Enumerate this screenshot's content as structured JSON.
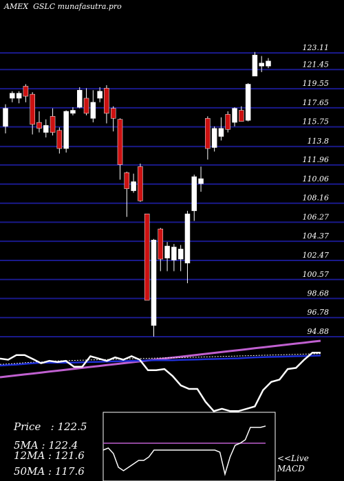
{
  "header": {
    "exchange": "AMEX",
    "symbol": "GSLC",
    "site": "munafasutra.pro"
  },
  "colors": {
    "background": "#000000",
    "grid": "#1a1a8c",
    "up_candle": "#ffffff",
    "down_candle": "#cc1111",
    "wick": "#ffffff",
    "price_line": "#ffffff",
    "ma_fast": "#1f2fd8",
    "ma_slow": "#c060d0",
    "macd_box": "#ffffff"
  },
  "chart_data": {
    "type": "candlestick",
    "price_axis": {
      "ticks": [
        123.11,
        121.45,
        119.55,
        117.65,
        115.75,
        113.8,
        111.96,
        110.06,
        108.16,
        106.27,
        104.37,
        102.47,
        100.57,
        98.68,
        96.78,
        94.88
      ],
      "labels": [
        "123.11",
        "121.45",
        "119.55",
        "117.65",
        "115.75",
        "113.8",
        "111.96",
        "110.06",
        "108.16",
        "106.27",
        "104.37",
        "102.47",
        "100.57",
        "98.68",
        "96.78",
        "94.88"
      ]
    },
    "candles": [
      {
        "o": 115.8,
        "c": 117.6,
        "h": 118.0,
        "l": 115.1
      },
      {
        "o": 118.6,
        "c": 119.1,
        "h": 119.3,
        "l": 118.2
      },
      {
        "o": 118.6,
        "c": 119.1,
        "h": 119.3,
        "l": 118.1
      },
      {
        "o": 119.8,
        "c": 118.8,
        "h": 120.0,
        "l": 118.2
      },
      {
        "o": 119.0,
        "c": 116.0,
        "h": 119.2,
        "l": 115.0
      },
      {
        "o": 116.2,
        "c": 115.6,
        "h": 117.3,
        "l": 115.2
      },
      {
        "o": 115.2,
        "c": 115.9,
        "h": 116.5,
        "l": 114.7
      },
      {
        "o": 116.8,
        "c": 115.2,
        "h": 117.6,
        "l": 114.9
      },
      {
        "o": 115.4,
        "c": 113.6,
        "h": 115.7,
        "l": 113.1
      },
      {
        "o": 113.6,
        "c": 117.3,
        "h": 117.4,
        "l": 113.2
      },
      {
        "o": 117.1,
        "c": 117.4,
        "h": 117.7,
        "l": 116.9
      },
      {
        "o": 117.7,
        "c": 119.4,
        "h": 119.7,
        "l": 117.6
      },
      {
        "o": 118.6,
        "c": 117.1,
        "h": 119.6,
        "l": 116.9
      },
      {
        "o": 116.6,
        "c": 118.2,
        "h": 119.4,
        "l": 116.2
      },
      {
        "o": 118.6,
        "c": 119.3,
        "h": 119.7,
        "l": 118.2
      },
      {
        "o": 119.6,
        "c": 117.1,
        "h": 119.9,
        "l": 116.1
      },
      {
        "o": 117.6,
        "c": 116.6,
        "h": 117.8,
        "l": 115.3
      },
      {
        "o": 116.5,
        "c": 112.0,
        "h": 116.6,
        "l": 110.5
      },
      {
        "o": 111.2,
        "c": 109.6,
        "h": 111.3,
        "l": 106.8
      },
      {
        "o": 109.4,
        "c": 110.3,
        "h": 111.1,
        "l": 109.2
      },
      {
        "o": 111.8,
        "c": 108.4,
        "h": 112.1,
        "l": 108.3
      },
      {
        "o": 107.1,
        "c": 98.5,
        "h": 107.1,
        "l": 98.5
      },
      {
        "o": 96.0,
        "c": 104.5,
        "h": 104.6,
        "l": 94.9
      },
      {
        "o": 105.6,
        "c": 102.6,
        "h": 105.7,
        "l": 101.4
      },
      {
        "o": 102.7,
        "c": 103.9,
        "h": 104.3,
        "l": 101.4
      },
      {
        "o": 102.5,
        "c": 103.8,
        "h": 104.1,
        "l": 101.4
      },
      {
        "o": 102.6,
        "c": 103.6,
        "h": 104.0,
        "l": 101.4
      },
      {
        "o": 102.2,
        "c": 107.1,
        "h": 107.4,
        "l": 100.2
      },
      {
        "o": 107.4,
        "c": 110.8,
        "h": 111.0,
        "l": 106.4
      },
      {
        "o": 110.1,
        "c": 110.6,
        "h": 111.8,
        "l": 109.3
      },
      {
        "o": 116.6,
        "c": 113.6,
        "h": 116.8,
        "l": 112.5
      },
      {
        "o": 113.7,
        "c": 115.6,
        "h": 115.8,
        "l": 113.3
      },
      {
        "o": 114.8,
        "c": 115.6,
        "h": 116.7,
        "l": 114.4
      },
      {
        "o": 117.0,
        "c": 115.5,
        "h": 117.3,
        "l": 115.2
      },
      {
        "o": 116.2,
        "c": 117.6,
        "h": 117.7,
        "l": 115.8
      },
      {
        "o": 117.4,
        "c": 116.3,
        "h": 117.8,
        "l": 116.3
      },
      {
        "o": 116.4,
        "c": 120.0,
        "h": 120.1,
        "l": 116.3
      },
      {
        "o": 120.8,
        "c": 122.9,
        "h": 123.2,
        "l": 120.8
      },
      {
        "o": 121.8,
        "c": 122.1,
        "h": 122.8,
        "l": 121.2
      },
      {
        "o": 121.8,
        "c": 122.3,
        "h": 122.6,
        "l": 121.6
      }
    ],
    "indicator_panel": {
      "price_line": [
        0.8,
        0.75,
        0.95,
        0.95,
        0.78,
        0.6,
        0.7,
        0.65,
        0.7,
        0.45,
        0.45,
        0.9,
        0.8,
        0.7,
        0.85,
        0.75,
        0.9,
        0.75,
        0.3,
        0.3,
        0.35,
        0.05,
        -0.35,
        -0.5,
        -0.5,
        -1.05,
        -1.45,
        -1.35,
        -1.45,
        -1.45,
        -1.35,
        -1.25,
        -0.55,
        -0.2,
        -0.1,
        0.35,
        0.4,
        0.75,
        1.05,
        1.05
      ],
      "ma_fast_line": [
        0.5,
        0.52,
        0.54,
        0.57,
        0.6,
        0.62,
        0.62,
        0.62,
        0.62,
        0.63,
        0.64,
        0.65,
        0.66,
        0.67,
        0.68,
        0.69,
        0.7,
        0.71,
        0.72,
        0.73,
        0.73,
        0.73,
        0.74,
        0.75,
        0.76,
        0.77,
        0.78,
        0.79,
        0.8,
        0.81,
        0.83,
        0.85,
        0.86,
        0.87,
        0.88,
        0.89,
        0.9,
        0.91,
        0.92,
        0.93
      ],
      "ma_slow_line": [
        0.0,
        0.04,
        0.08,
        0.12,
        0.16,
        0.2,
        0.24,
        0.28,
        0.32,
        0.36,
        0.4,
        0.44,
        0.48,
        0.52,
        0.56,
        0.6,
        0.64,
        0.68,
        0.72,
        0.76,
        0.8,
        0.84,
        0.88,
        0.92,
        0.96,
        1.0,
        1.04,
        1.08,
        1.12,
        1.16,
        1.2,
        1.24,
        1.28,
        1.32,
        1.36,
        1.4,
        1.44,
        1.48,
        1.52,
        1.56
      ],
      "dotted_line": [
        0.55,
        0.57,
        0.59,
        0.62,
        0.64,
        0.66,
        0.68,
        0.7,
        0.71,
        0.72,
        0.73,
        0.74,
        0.75,
        0.76,
        0.77,
        0.78,
        0.79,
        0.8,
        0.81,
        0.82,
        0.83,
        0.83,
        0.84,
        0.85,
        0.86,
        0.87,
        0.88,
        0.89,
        0.9,
        0.91,
        0.92,
        0.93,
        0.94,
        0.95,
        0.96,
        0.97,
        0.98,
        0.99,
        1.0,
        1.01
      ]
    },
    "macd_panel": {
      "macd_line": [
        0.45,
        0.48,
        0.4,
        0.2,
        0.15,
        0.2,
        0.25,
        0.3,
        0.3,
        0.35,
        0.45,
        0.45,
        0.45,
        0.45,
        0.45,
        0.45,
        0.45,
        0.45,
        0.45,
        0.45,
        0.45,
        0.45,
        0.45,
        0.42,
        0.1,
        0.35,
        0.52,
        0.55,
        0.6,
        0.78,
        0.78,
        0.78,
        0.8
      ],
      "signal_line": [
        0.55,
        0.55,
        0.55,
        0.55,
        0.55,
        0.55,
        0.55,
        0.55,
        0.55,
        0.55,
        0.55,
        0.55,
        0.55,
        0.55,
        0.55,
        0.55,
        0.55,
        0.55,
        0.55,
        0.55,
        0.55,
        0.55,
        0.55,
        0.55,
        0.55,
        0.55,
        0.55,
        0.55,
        0.55,
        0.55,
        0.55,
        0.55,
        0.55
      ]
    }
  },
  "stats": {
    "price": "Price   : 122.5",
    "ma5": "5MA : 122.4",
    "ma12": "12MA : 121.6",
    "ma50": "50MA : 117.6"
  },
  "macd_label": {
    "line1": "<<Live",
    "line2": "MACD"
  }
}
